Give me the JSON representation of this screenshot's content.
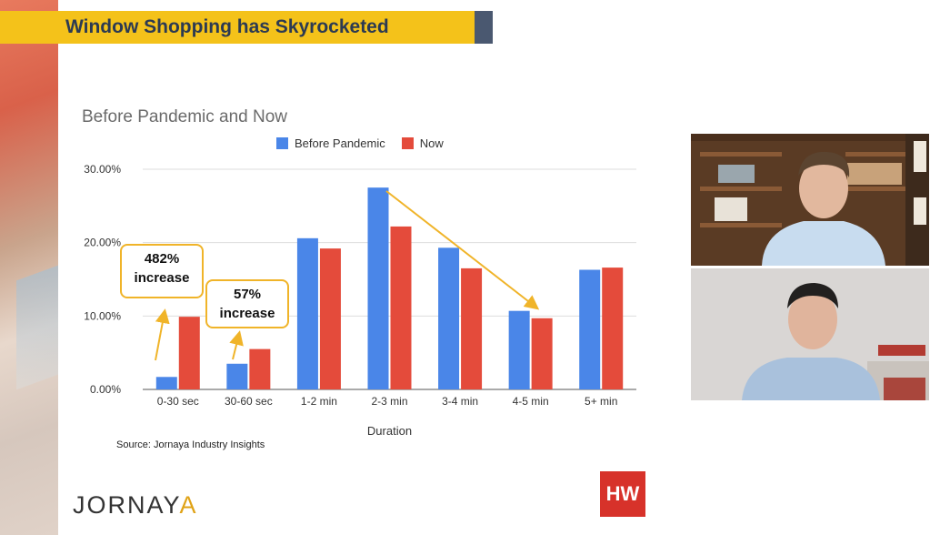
{
  "slide": {
    "title": "Window Shopping has Skyrocketed",
    "source": "Source: Jornaya Industry Insights",
    "logo_main": "JORNAY",
    "logo_accent": "A",
    "badge": "HW"
  },
  "callouts": [
    {
      "line1": "482%",
      "line2": "increase"
    },
    {
      "line1": "57%",
      "line2": "increase"
    }
  ],
  "colors": {
    "before": "#4a86e8",
    "now": "#e44b3b",
    "arrow": "#f0b429",
    "title_bar": "#f4c21a"
  },
  "chart_data": {
    "type": "bar",
    "title": "Before Pandemic and Now",
    "xlabel": "Duration",
    "ylabel": "",
    "ylim": [
      0,
      30
    ],
    "yticks": [
      "0.00%",
      "10.00%",
      "20.00%",
      "30.00%"
    ],
    "ytick_values": [
      0,
      10,
      20,
      30
    ],
    "grid": true,
    "legend_position": "top",
    "categories": [
      "0-30 sec",
      "30-60 sec",
      "1-2 min",
      "2-3 min",
      "3-4 min",
      "4-5 min",
      "5+ min"
    ],
    "series": [
      {
        "name": "Before Pandemic",
        "values": [
          1.7,
          3.5,
          20.6,
          27.5,
          19.3,
          10.7,
          16.3
        ]
      },
      {
        "name": "Now",
        "values": [
          9.9,
          5.5,
          19.2,
          22.2,
          16.5,
          9.7,
          16.6
        ]
      }
    ]
  }
}
